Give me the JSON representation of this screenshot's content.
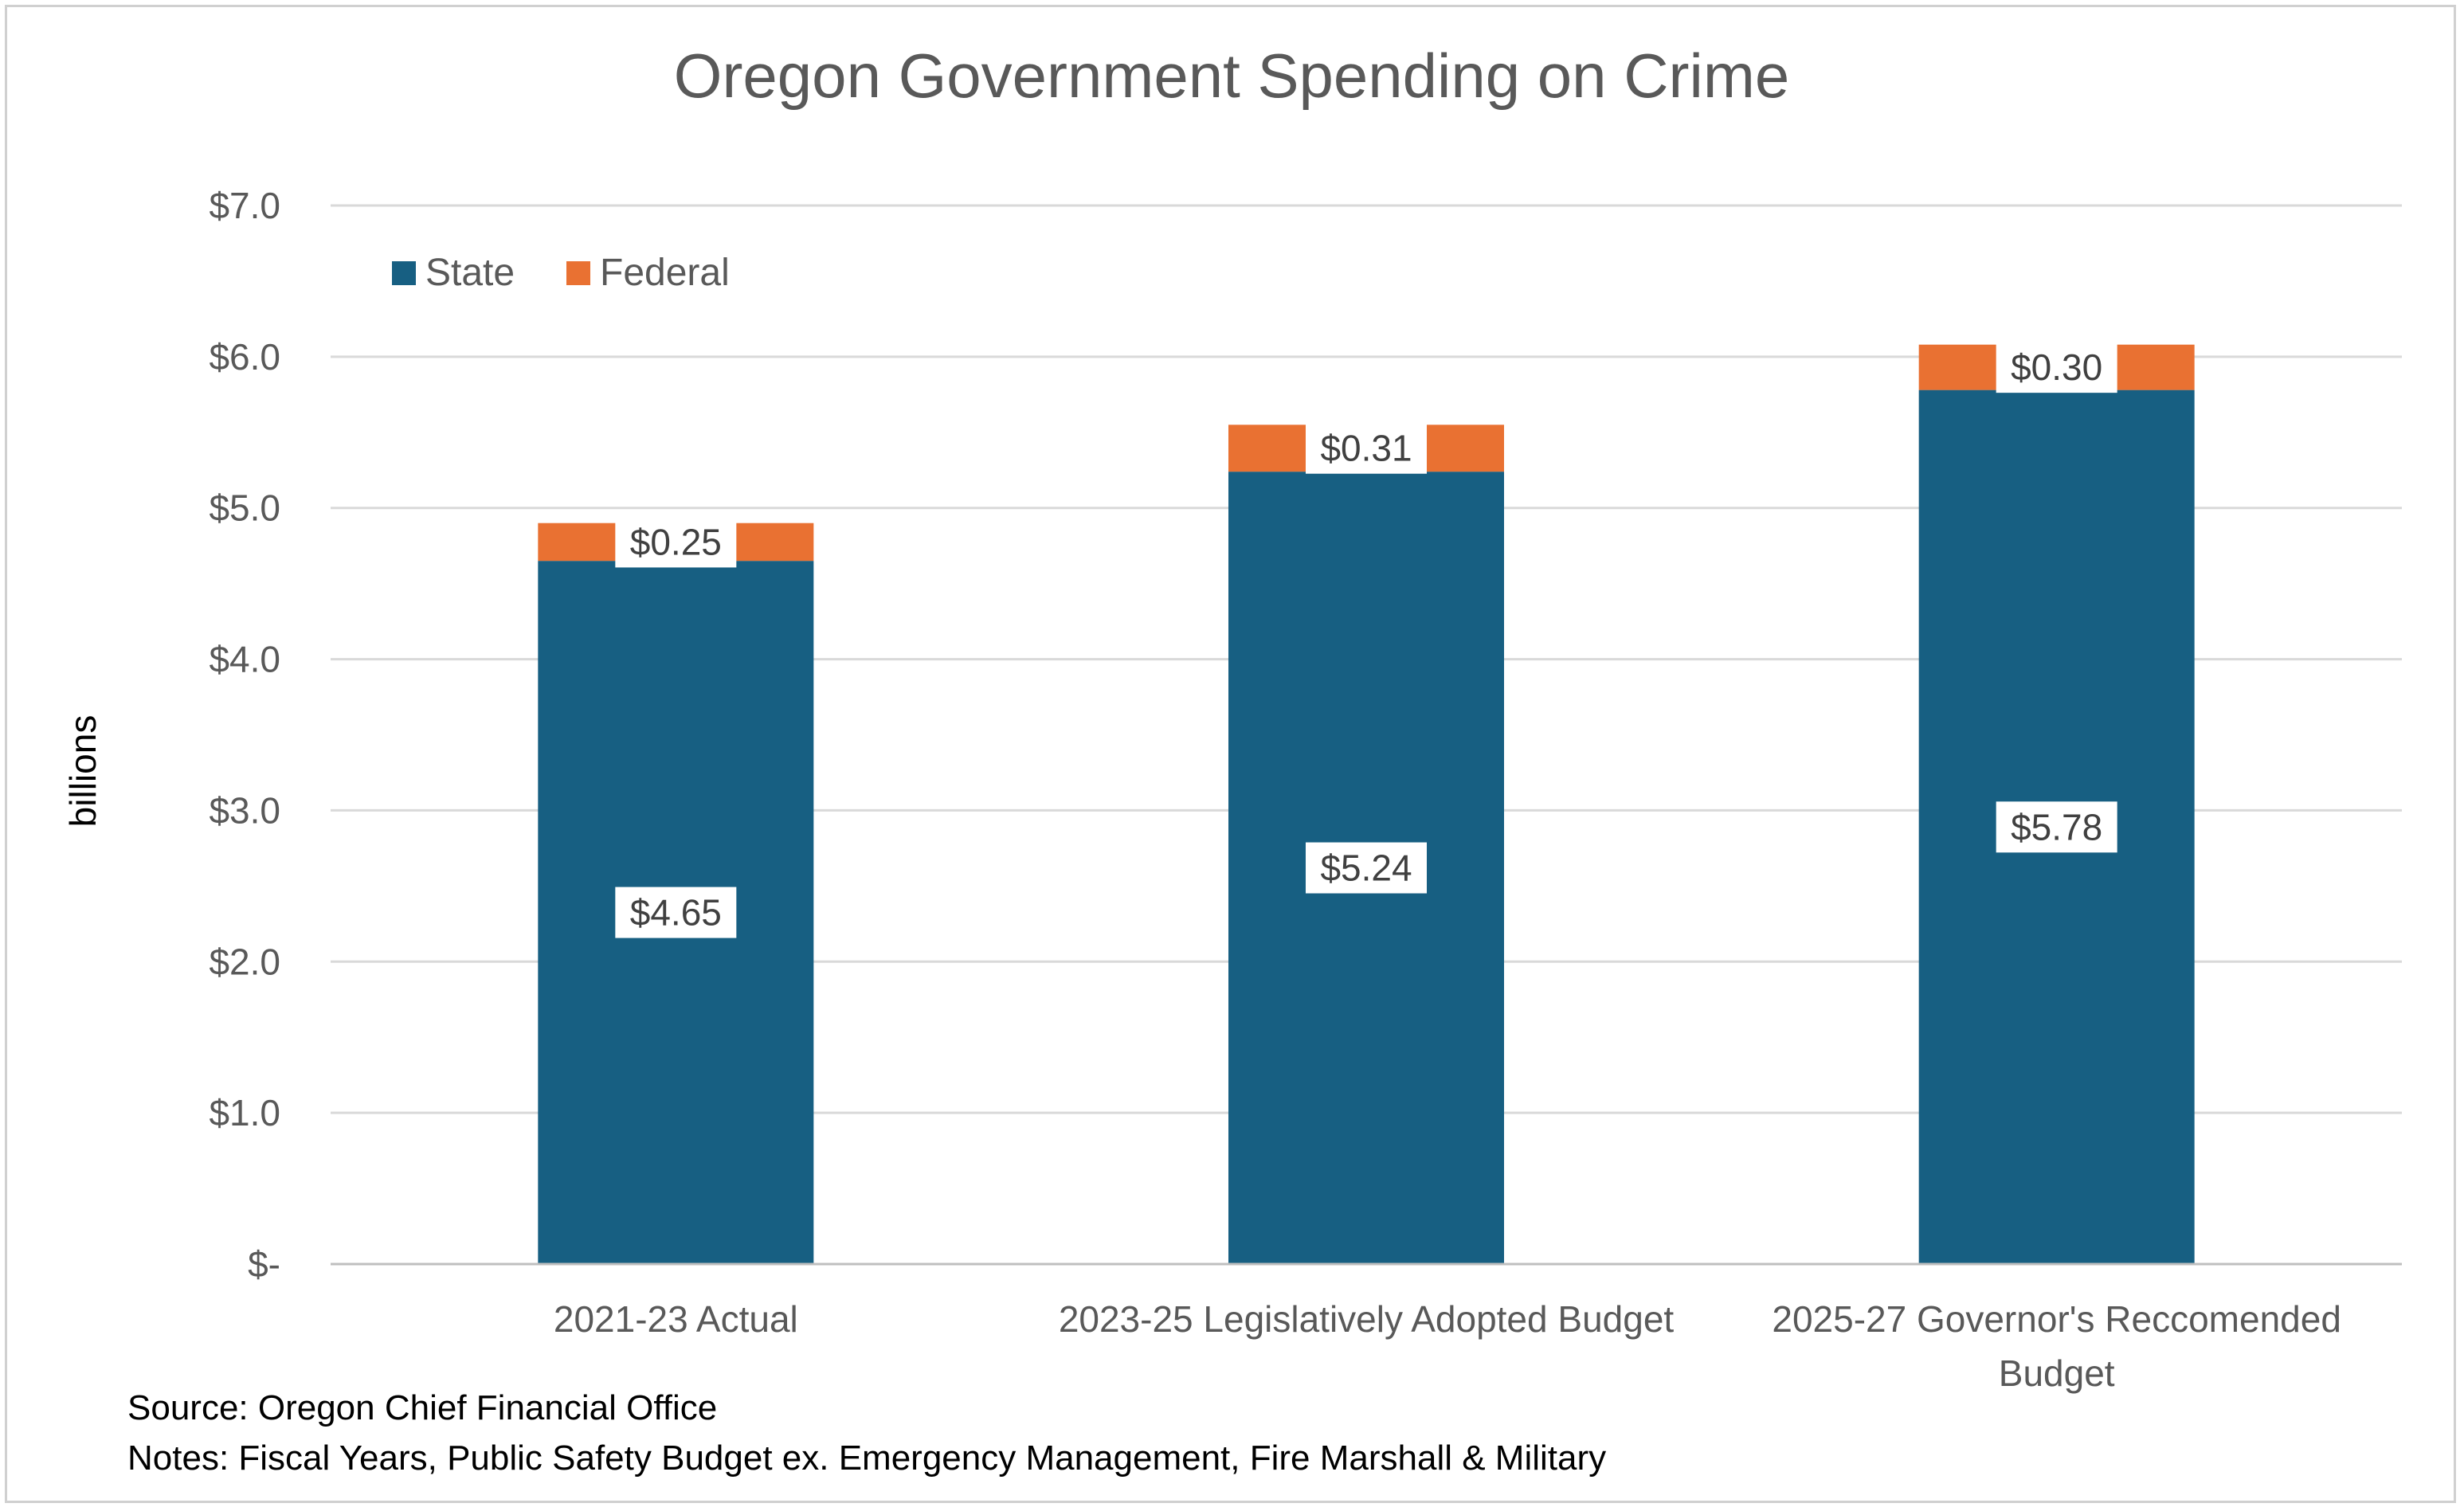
{
  "colors": {
    "state": "#175F82",
    "federal": "#E97132",
    "grid": "#D9D9D9",
    "axis": "#BFBFBF"
  },
  "chart_data": {
    "type": "bar",
    "stacked": true,
    "title": "Oregon Government Spending on Crime",
    "ylabel": "billions",
    "xlabel": "",
    "ylim": [
      0,
      7
    ],
    "yticks": [
      {
        "value": 0,
        "label": "$-"
      },
      {
        "value": 1,
        "label": "$1.0"
      },
      {
        "value": 2,
        "label": "$2.0"
      },
      {
        "value": 3,
        "label": "$3.0"
      },
      {
        "value": 4,
        "label": "$4.0"
      },
      {
        "value": 5,
        "label": "$5.0"
      },
      {
        "value": 6,
        "label": "$6.0"
      },
      {
        "value": 7,
        "label": "$7.0"
      }
    ],
    "grid": true,
    "legend_position": "top-left",
    "categories": [
      [
        "2021-23 Actual"
      ],
      [
        "2023-25 Legislatively Adopted Budget"
      ],
      [
        "2025-27 Governor's Reccomended",
        "Budget"
      ]
    ],
    "series": [
      {
        "name": "State",
        "color": "#175F82",
        "values": [
          4.65,
          5.24,
          5.78
        ],
        "labels": [
          "$4.65",
          "$5.24",
          "$5.78"
        ]
      },
      {
        "name": "Federal",
        "color": "#E97132",
        "values": [
          0.25,
          0.31,
          0.3
        ],
        "labels": [
          "$0.25",
          "$0.31",
          "$0.30"
        ]
      }
    ]
  },
  "notes": {
    "source": "Source:  Oregon Chief Financial Office",
    "notes": "Notes:  Fiscal Years, Public Safety Budget ex. Emergency Management, Fire Marshall & Military"
  }
}
